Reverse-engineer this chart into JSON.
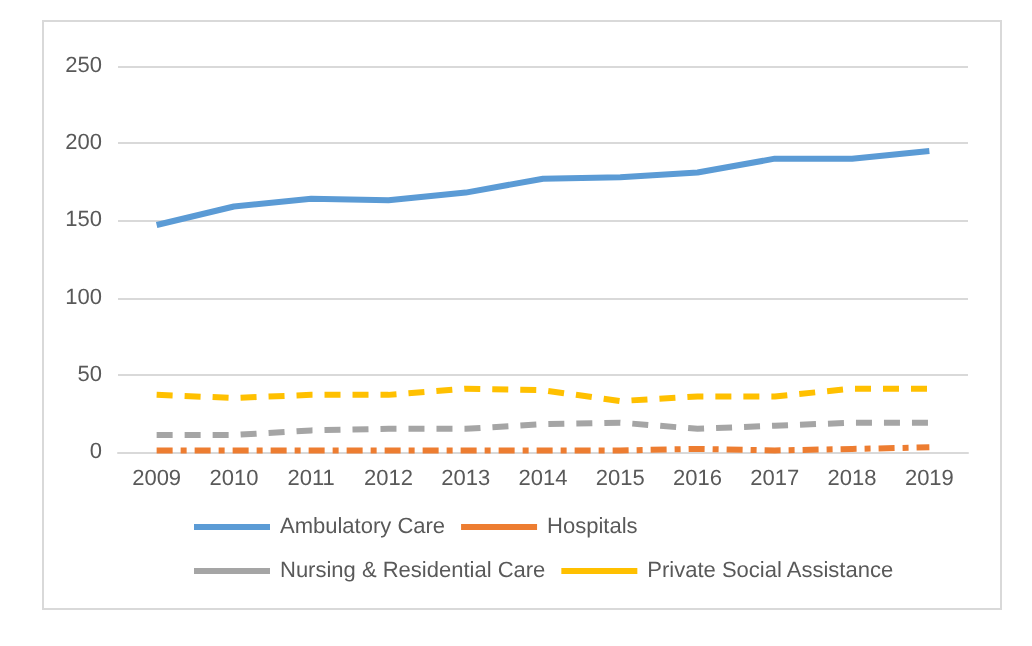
{
  "chart_data": {
    "type": "line",
    "categories": [
      "2009",
      "2010",
      "2011",
      "2012",
      "2013",
      "2014",
      "2015",
      "2016",
      "2017",
      "2018",
      "2019"
    ],
    "series": [
      {
        "name": "Ambulatory Care",
        "color": "#5b9bd5",
        "line_style": "solid",
        "values": [
          147,
          159,
          164,
          163,
          168,
          177,
          178,
          181,
          190,
          190,
          195
        ]
      },
      {
        "name": "Hospitals",
        "color": "#ed7d31",
        "line_style": "dashed",
        "values": [
          1,
          1,
          1,
          1,
          1,
          1,
          1,
          2,
          1,
          2,
          3
        ]
      },
      {
        "name": "Nursing & Residential Care",
        "color": "#a5a5a5",
        "line_style": "dashed",
        "values": [
          11,
          11,
          14,
          15,
          15,
          18,
          19,
          15,
          17,
          19,
          19
        ]
      },
      {
        "name": "Private Social Assistance",
        "color": "#ffc000",
        "line_style": "dashed",
        "values": [
          37,
          35,
          37,
          37,
          41,
          40,
          33,
          36,
          36,
          41,
          41
        ]
      }
    ],
    "ylim": [
      0,
      250
    ],
    "yticks": [
      0,
      50,
      100,
      150,
      200,
      250
    ],
    "grid": "y",
    "legend": "bottom",
    "marker": "none"
  }
}
